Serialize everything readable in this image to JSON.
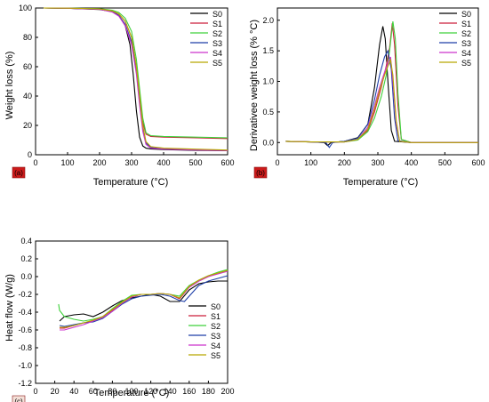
{
  "series_colors": [
    "#000000",
    "#cc1f3a",
    "#3fd13b",
    "#1f3fa8",
    "#cc33cc",
    "#b8a800"
  ],
  "chart_data": [
    {
      "type": "line",
      "panel_label": "(a)",
      "xlabel": "Temperature (°C)",
      "ylabel": "Weight loss (%)",
      "xlim": [
        0,
        600
      ],
      "ylim": [
        0,
        100
      ],
      "xticks": [
        0,
        100,
        200,
        300,
        400,
        500,
        600
      ],
      "yticks": [
        0,
        20,
        40,
        60,
        80,
        100
      ],
      "legend_position": "top-right",
      "series": [
        {
          "name": "S0",
          "x": [
            25,
            100,
            200,
            240,
            260,
            280,
            295,
            305,
            315,
            325,
            335,
            345,
            360,
            400,
            500,
            600
          ],
          "y": [
            100,
            99.8,
            99,
            97.5,
            95,
            88,
            75,
            55,
            30,
            12,
            6,
            4.5,
            4,
            3.5,
            3,
            2.8
          ]
        },
        {
          "name": "S1",
          "x": [
            25,
            100,
            200,
            240,
            260,
            280,
            300,
            315,
            325,
            335,
            345,
            360,
            400,
            500,
            600
          ],
          "y": [
            100,
            99.8,
            99.3,
            98,
            96,
            91,
            80,
            60,
            40,
            22,
            14,
            12.5,
            12,
            11.5,
            11
          ]
        },
        {
          "name": "S2",
          "x": [
            25,
            100,
            200,
            240,
            260,
            280,
            300,
            315,
            325,
            335,
            345,
            360,
            400,
            500,
            600
          ],
          "y": [
            100,
            99.9,
            99.5,
            98.5,
            97,
            93,
            84,
            65,
            45,
            25,
            15,
            13,
            12.5,
            12,
            11.5
          ]
        },
        {
          "name": "S3",
          "x": [
            25,
            100,
            200,
            240,
            260,
            280,
            300,
            315,
            325,
            335,
            345,
            360,
            400,
            500,
            600
          ],
          "y": [
            100,
            99.8,
            99.2,
            97.5,
            95,
            89,
            77,
            57,
            37,
            18,
            8,
            5,
            4,
            3.5,
            3
          ]
        },
        {
          "name": "S4",
          "x": [
            25,
            100,
            200,
            240,
            260,
            280,
            300,
            315,
            325,
            335,
            345,
            360,
            400,
            500,
            600
          ],
          "y": [
            100,
            99.8,
            99.1,
            97.2,
            94.5,
            88,
            75,
            55,
            34,
            16,
            7,
            4.5,
            3.8,
            3.2,
            2.8
          ]
        },
        {
          "name": "S5",
          "x": [
            25,
            100,
            200,
            240,
            260,
            280,
            300,
            315,
            325,
            335,
            345,
            360,
            400,
            500,
            600
          ],
          "y": [
            100,
            99.9,
            99.4,
            98,
            96,
            91,
            80,
            60,
            40,
            20,
            9,
            5.5,
            4.5,
            3.8,
            3.2
          ]
        }
      ]
    },
    {
      "type": "line",
      "panel_label": "(b)",
      "xlabel": "Temperature (°C)",
      "ylabel": "Derivativee weight loss (% °C)",
      "xlim": [
        0,
        600
      ],
      "ylim": [
        -0.2,
        2.2
      ],
      "xticks": [
        0,
        100,
        200,
        300,
        400,
        500,
        600
      ],
      "yticks": [
        0.0,
        0.5,
        1.0,
        1.5,
        2.0
      ],
      "legend_position": "top-right",
      "series": [
        {
          "name": "S0",
          "x": [
            25,
            100,
            140,
            150,
            160,
            200,
            240,
            270,
            290,
            305,
            315,
            322,
            330,
            340,
            350,
            400,
            600
          ],
          "y": [
            0.02,
            0.01,
            0,
            -0.05,
            0,
            0.02,
            0.08,
            0.3,
            0.9,
            1.6,
            1.9,
            1.7,
            1.0,
            0.2,
            0.02,
            0,
            0
          ]
        },
        {
          "name": "S1",
          "x": [
            25,
            100,
            200,
            240,
            270,
            290,
            310,
            325,
            335,
            343,
            350,
            360,
            370,
            400,
            600
          ],
          "y": [
            0.02,
            0.01,
            0.01,
            0.05,
            0.2,
            0.5,
            0.9,
            1.25,
            1.55,
            1.95,
            1.6,
            0.6,
            0.05,
            0,
            0
          ]
        },
        {
          "name": "S2",
          "x": [
            25,
            100,
            200,
            240,
            270,
            290,
            310,
            325,
            335,
            345,
            352,
            360,
            370,
            400,
            600
          ],
          "y": [
            0.02,
            0.01,
            0.01,
            0.04,
            0.18,
            0.4,
            0.75,
            1.1,
            1.5,
            1.98,
            1.7,
            0.8,
            0.05,
            0,
            0
          ]
        },
        {
          "name": "S3",
          "x": [
            25,
            100,
            145,
            155,
            165,
            200,
            240,
            270,
            290,
            305,
            320,
            330,
            340,
            350,
            360,
            400,
            600
          ],
          "y": [
            0.02,
            0.01,
            0,
            -0.08,
            0,
            0.02,
            0.07,
            0.3,
            0.7,
            1.1,
            1.4,
            1.5,
            1.2,
            0.4,
            0.03,
            0,
            0
          ]
        },
        {
          "name": "S4",
          "x": [
            25,
            100,
            200,
            240,
            270,
            290,
            305,
            320,
            330,
            338,
            345,
            355,
            365,
            400,
            600
          ],
          "y": [
            0.02,
            0.01,
            0.01,
            0.05,
            0.25,
            0.6,
            0.9,
            1.15,
            1.3,
            1.4,
            1.0,
            0.3,
            0.02,
            0,
            0
          ]
        },
        {
          "name": "S5",
          "x": [
            25,
            100,
            200,
            240,
            270,
            290,
            305,
            320,
            330,
            338,
            345,
            355,
            365,
            400,
            600
          ],
          "y": [
            0.02,
            0.01,
            0.01,
            0.05,
            0.22,
            0.55,
            0.85,
            1.1,
            1.25,
            1.35,
            1.1,
            0.35,
            0.02,
            0,
            0
          ]
        }
      ]
    },
    {
      "type": "line",
      "panel_label": "(c)",
      "xlabel": "Temperature (°C)",
      "ylabel": "Heat flow (W/g)",
      "xlim": [
        0,
        200
      ],
      "ylim": [
        -1.2,
        0.4
      ],
      "xticks": [
        0,
        20,
        40,
        60,
        80,
        100,
        120,
        140,
        160,
        180,
        200
      ],
      "yticks": [
        -1.2,
        -1.0,
        -0.8,
        -0.6,
        -0.4,
        -0.2,
        0.0,
        0.2,
        0.4
      ],
      "legend_position": "bottom-right",
      "series": [
        {
          "name": "S0",
          "x": [
            25,
            30,
            40,
            50,
            60,
            70,
            80,
            90,
            100,
            110,
            120,
            130,
            140,
            150,
            160,
            170,
            180,
            190,
            200
          ],
          "y": [
            -0.5,
            -0.45,
            -0.43,
            -0.42,
            -0.45,
            -0.4,
            -0.33,
            -0.27,
            -0.24,
            -0.22,
            -0.2,
            -0.22,
            -0.28,
            -0.28,
            -0.15,
            -0.08,
            -0.06,
            -0.05,
            -0.05
          ]
        },
        {
          "name": "S1",
          "x": [
            25,
            30,
            40,
            50,
            60,
            70,
            80,
            90,
            100,
            110,
            120,
            130,
            140,
            150,
            160,
            170,
            180,
            190,
            200
          ],
          "y": [
            -0.58,
            -0.58,
            -0.55,
            -0.52,
            -0.5,
            -0.45,
            -0.38,
            -0.3,
            -0.23,
            -0.2,
            -0.2,
            -0.19,
            -0.2,
            -0.25,
            -0.12,
            -0.05,
            0,
            0.04,
            0.07
          ]
        },
        {
          "name": "S2",
          "x": [
            24,
            25,
            30,
            40,
            50,
            60,
            70,
            80,
            90,
            100,
            110,
            120,
            130,
            140,
            150,
            160,
            170,
            180,
            190,
            200
          ],
          "y": [
            -0.31,
            -0.38,
            -0.45,
            -0.48,
            -0.5,
            -0.48,
            -0.45,
            -0.36,
            -0.28,
            -0.21,
            -0.2,
            -0.2,
            -0.19,
            -0.2,
            -0.22,
            -0.1,
            -0.04,
            0.01,
            0.05,
            0.08
          ]
        },
        {
          "name": "S3",
          "x": [
            25,
            30,
            40,
            50,
            60,
            70,
            80,
            90,
            100,
            110,
            120,
            130,
            140,
            150,
            155,
            160,
            170,
            180,
            190,
            200
          ],
          "y": [
            -0.55,
            -0.56,
            -0.54,
            -0.52,
            -0.51,
            -0.47,
            -0.39,
            -0.31,
            -0.25,
            -0.22,
            -0.21,
            -0.2,
            -0.22,
            -0.27,
            -0.28,
            -0.22,
            -0.1,
            -0.05,
            -0.02,
            0.01
          ]
        },
        {
          "name": "S4",
          "x": [
            25,
            30,
            40,
            50,
            60,
            70,
            80,
            90,
            100,
            110,
            120,
            130,
            140,
            150,
            160,
            170,
            180,
            190,
            200
          ],
          "y": [
            -0.6,
            -0.6,
            -0.57,
            -0.54,
            -0.5,
            -0.46,
            -0.39,
            -0.3,
            -0.23,
            -0.2,
            -0.2,
            -0.19,
            -0.2,
            -0.24,
            -0.12,
            -0.05,
            0,
            0.03,
            0.06
          ]
        },
        {
          "name": "S5",
          "x": [
            25,
            30,
            40,
            50,
            60,
            70,
            80,
            90,
            100,
            110,
            120,
            130,
            140,
            150,
            160,
            170,
            180,
            190,
            200
          ],
          "y": [
            -0.57,
            -0.57,
            -0.55,
            -0.52,
            -0.49,
            -0.45,
            -0.37,
            -0.29,
            -0.22,
            -0.2,
            -0.2,
            -0.19,
            -0.2,
            -0.24,
            -0.11,
            -0.04,
            0.01,
            0.04,
            0.07
          ]
        }
      ]
    }
  ]
}
